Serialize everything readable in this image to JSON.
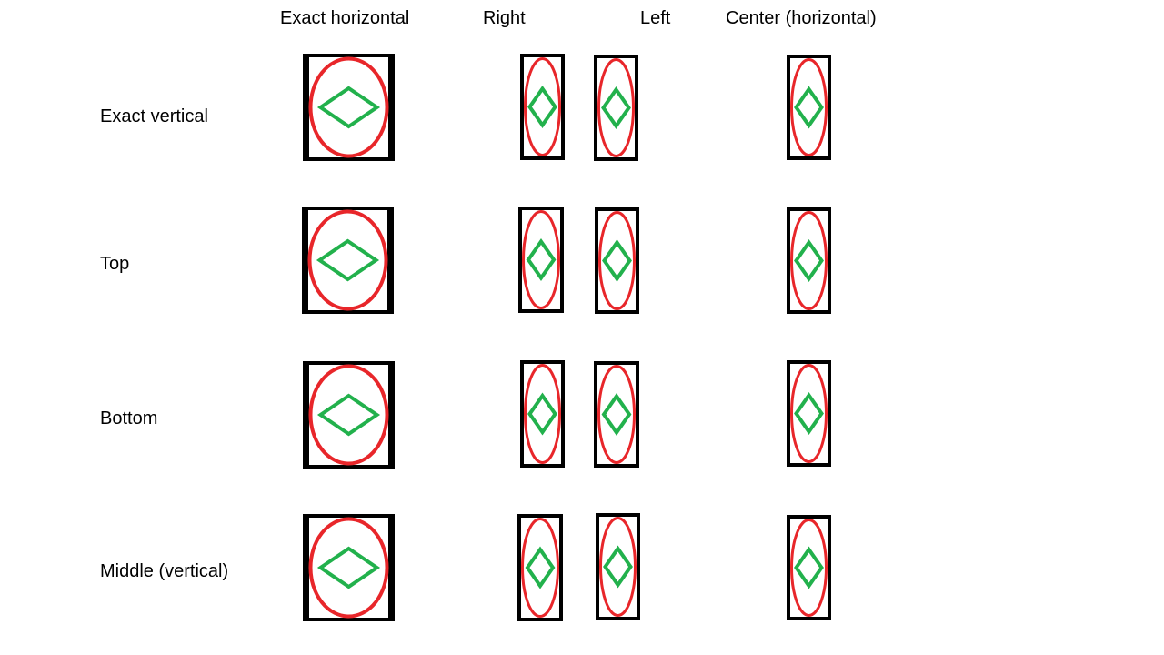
{
  "columns": {
    "exact_horizontal": "Exact horizontal",
    "right": "Right",
    "left": "Left",
    "center_horizontal": "Center (horizontal)"
  },
  "rows": {
    "exact_vertical": "Exact vertical",
    "top": "Top",
    "bottom": "Bottom",
    "middle_vertical": "Middle (vertical)"
  },
  "colors": {
    "frame": "#000000",
    "ellipse": "#e8262a",
    "diamond": "#22b14c",
    "background": "#ffffff"
  },
  "shapes": {
    "frame": "black-rectangle",
    "outer": "red-ellipse",
    "inner": "green-diamond"
  }
}
